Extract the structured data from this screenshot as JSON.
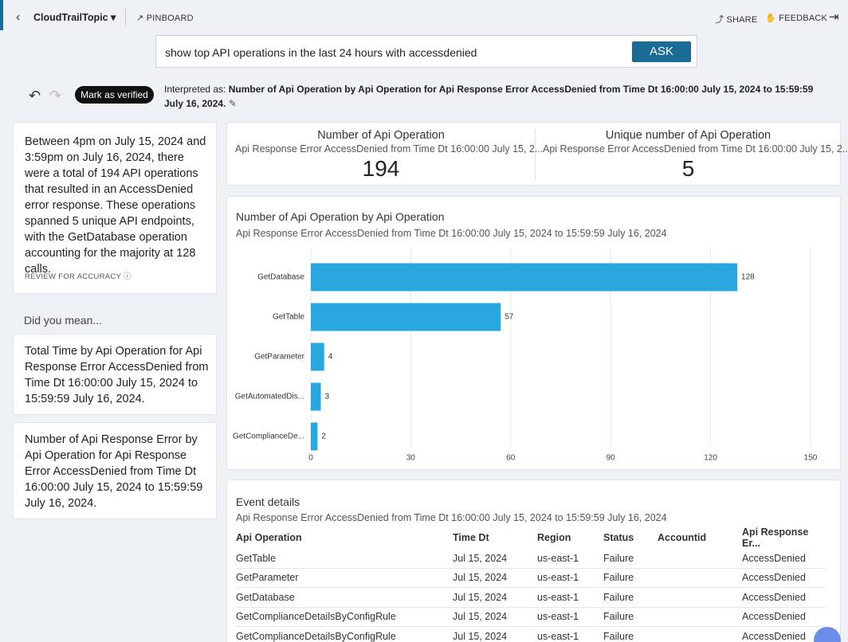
{
  "header": {
    "topic": "CloudTrailTopic",
    "pinboard": "PINBOARD",
    "share": "SHARE",
    "feedback": "FEEDBACK"
  },
  "search": {
    "query": "show top API operations in the last 24 hours with accessdenied",
    "button": "ASK"
  },
  "verify": "Mark as verified",
  "interpretation": {
    "prefix": "Interpreted as:",
    "text": "Number of Api Operation by Api Operation for Api Response Error AccessDenied from Time Dt 16:00:00 July 15, 2024 to 15:59:59 July 16, 2024."
  },
  "summary": {
    "text": "Between 4pm on July 15, 2024 and 3:59pm on July 16, 2024, there were a total of 194 API operations that resulted in an AccessDenied error response. These operations spanned 5 unique API endpoints, with the GetDatabase operation accounting for the majority at 128 calls.",
    "review": "REVIEW FOR ACCURACY"
  },
  "suggestions": {
    "heading": "Did you mean...",
    "items": [
      "Total Time by Api Operation for Api Response Error AccessDenied from Time Dt 16:00:00 July 15, 2024 to 15:59:59 July 16, 2024.",
      "Number of Api Response Error by Api Operation for Api Response Error AccessDenied from Time Dt 16:00:00 July 15, 2024 to 15:59:59 July 16, 2024."
    ]
  },
  "kpis": [
    {
      "title": "Number of Api Operation",
      "subtitle": "Api Response Error AccessDenied from Time Dt 16:00:00 July 15, 2...",
      "value": 194
    },
    {
      "title": "Unique number of Api Operation",
      "subtitle": "Api Response Error AccessDenied from Time Dt 16:00:00 July 15, 2...",
      "value": 5
    }
  ],
  "chart_data": {
    "type": "bar",
    "orientation": "horizontal",
    "title": "Number of Api Operation by Api Operation",
    "subtitle": "Api Response Error AccessDenied from Time Dt 16:00:00 July 15, 2024 to 15:59:59 July 16, 2024",
    "categories": [
      "GetDatabase",
      "GetTable",
      "GetParameter",
      "GetAutomatedDis...",
      "GetComplianceDe..."
    ],
    "values": [
      128,
      57,
      4,
      3,
      2
    ],
    "color": "#29a7df",
    "xlim": [
      0,
      150
    ],
    "xticks": [
      0,
      30,
      60,
      90,
      120,
      150
    ],
    "grid": true
  },
  "table": {
    "title": "Event details",
    "subtitle": "Api Response Error AccessDenied from Time Dt 16:00:00 July 15, 2024 to 15:59:59 July 16, 2024",
    "columns": [
      "Api Operation",
      "Time Dt",
      "Region",
      "Status",
      "Accountid",
      "Api Response Er..."
    ],
    "rows": [
      [
        "GetTable",
        "Jul 15, 2024",
        "us-east-1",
        "Failure",
        null,
        "AccessDenied"
      ],
      [
        "GetParameter",
        "Jul 15, 2024",
        "us-east-1",
        "Failure",
        null,
        "AccessDenied"
      ],
      [
        "GetDatabase",
        "Jul 15, 2024",
        "us-east-1",
        "Failure",
        null,
        "AccessDenied"
      ],
      [
        "GetComplianceDetailsByConfigRule",
        "Jul 15, 2024",
        "us-east-1",
        "Failure",
        null,
        "AccessDenied"
      ],
      [
        "GetComplianceDetailsByConfigRule",
        "Jul 15, 2024",
        "us-east-1",
        "Failure",
        null,
        "AccessDenied"
      ]
    ]
  }
}
